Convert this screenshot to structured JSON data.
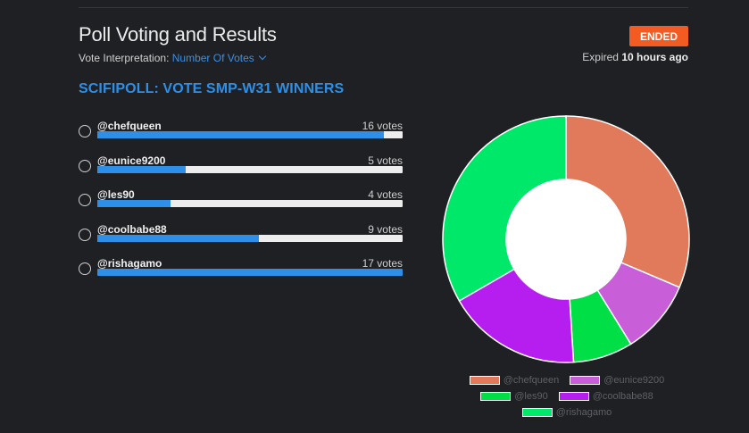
{
  "header": {
    "title": "Poll Voting and Results",
    "interpretation_label": "Vote Interpretation:",
    "interpretation_value": "Number Of Votes",
    "status_badge": "ENDED",
    "expired_prefix": "Expired",
    "expired_time": "10 hours ago"
  },
  "poll": {
    "title": "SCIFIPOLL: VOTE SMP-W31 WINNERS",
    "options": [
      {
        "label": "@chefqueen",
        "votes": 16,
        "votes_text": "16 votes",
        "fraction": 0.94,
        "color": "#e07a5a"
      },
      {
        "label": "@eunice9200",
        "votes": 5,
        "votes_text": "5 votes",
        "fraction": 0.29,
        "color": "#c85fd8"
      },
      {
        "label": "@les90",
        "votes": 4,
        "votes_text": "4 votes",
        "fraction": 0.24,
        "color": "#00e046"
      },
      {
        "label": "@coolbabe88",
        "votes": 9,
        "votes_text": "9 votes",
        "fraction": 0.53,
        "color": "#b61ef0"
      },
      {
        "label": "@rishagamo",
        "votes": 17,
        "votes_text": "17 votes",
        "fraction": 1.0,
        "color": "#00e86a"
      }
    ]
  },
  "chart_data": {
    "type": "pie",
    "categories": [
      "@chefqueen",
      "@eunice9200",
      "@les90",
      "@coolbabe88",
      "@rishagamo"
    ],
    "values": [
      16,
      5,
      4,
      9,
      17
    ],
    "colors": [
      "#e07a5a",
      "#c85fd8",
      "#00e046",
      "#b61ef0",
      "#00e86a"
    ],
    "donut": true,
    "legend": "bottom"
  }
}
